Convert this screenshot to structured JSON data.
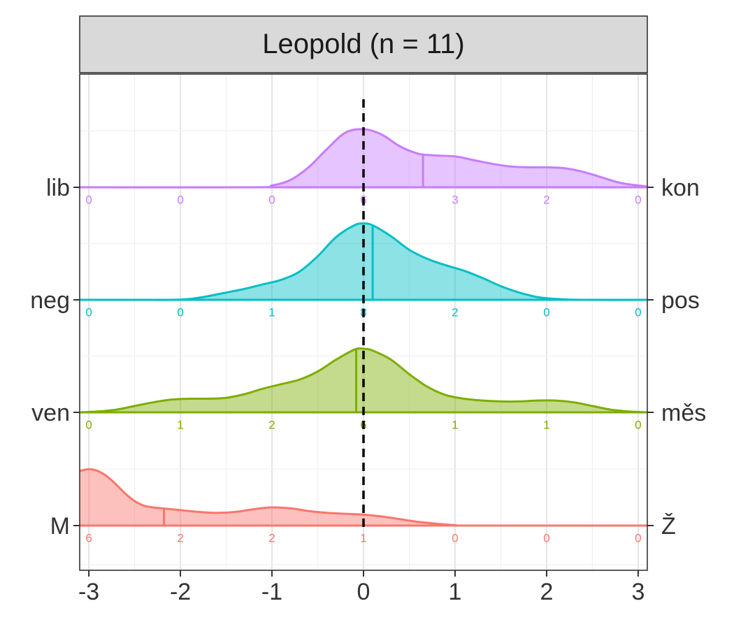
{
  "chart_data": {
    "type": "ridgeline",
    "facet_title": "Leopold (n = 11)",
    "x_ticks": [
      -3,
      -2,
      -1,
      0,
      1,
      2,
      3
    ],
    "xlim": [
      -3.1,
      3.1
    ],
    "reference_line_x": 0,
    "grid": true,
    "count_positions": [
      -3,
      -2,
      -1,
      0,
      1,
      2,
      3
    ],
    "rows": [
      {
        "left_label": "M",
        "right_label": "Ž",
        "color": "#F8766D",
        "mean": -2.18,
        "counts": [
          "6",
          "2",
          "2",
          "1",
          "0",
          "0",
          "0"
        ],
        "density": [
          [
            -3.1,
            0.6
          ],
          [
            -3.0,
            0.62
          ],
          [
            -2.9,
            0.6
          ],
          [
            -2.8,
            0.54
          ],
          [
            -2.7,
            0.45
          ],
          [
            -2.6,
            0.35
          ],
          [
            -2.5,
            0.27
          ],
          [
            -2.4,
            0.22
          ],
          [
            -2.3,
            0.2
          ],
          [
            -2.2,
            0.19
          ],
          [
            -2.1,
            0.18
          ],
          [
            -2.0,
            0.17
          ],
          [
            -1.8,
            0.15
          ],
          [
            -1.6,
            0.14
          ],
          [
            -1.4,
            0.15
          ],
          [
            -1.2,
            0.18
          ],
          [
            -1.0,
            0.2
          ],
          [
            -0.8,
            0.19
          ],
          [
            -0.6,
            0.16
          ],
          [
            -0.4,
            0.14
          ],
          [
            -0.2,
            0.13
          ],
          [
            0.0,
            0.12
          ],
          [
            0.2,
            0.1
          ],
          [
            0.4,
            0.07
          ],
          [
            0.6,
            0.04
          ],
          [
            0.8,
            0.02
          ],
          [
            1.0,
            0.005
          ],
          [
            1.2,
            0.0
          ],
          [
            3.1,
            0.0
          ]
        ]
      },
      {
        "left_label": "ven",
        "right_label": "měs",
        "color": "#7CAE00",
        "mean": -0.08,
        "counts": [
          "0",
          "1",
          "2",
          "6",
          "1",
          "1",
          "0"
        ],
        "density": [
          [
            -3.1,
            0.0
          ],
          [
            -2.9,
            0.01
          ],
          [
            -2.7,
            0.03
          ],
          [
            -2.5,
            0.07
          ],
          [
            -2.3,
            0.11
          ],
          [
            -2.1,
            0.14
          ],
          [
            -1.9,
            0.15
          ],
          [
            -1.7,
            0.15
          ],
          [
            -1.5,
            0.16
          ],
          [
            -1.3,
            0.2
          ],
          [
            -1.1,
            0.26
          ],
          [
            -0.9,
            0.31
          ],
          [
            -0.7,
            0.36
          ],
          [
            -0.5,
            0.45
          ],
          [
            -0.3,
            0.58
          ],
          [
            -0.1,
            0.69
          ],
          [
            0.0,
            0.7
          ],
          [
            0.1,
            0.68
          ],
          [
            0.3,
            0.58
          ],
          [
            0.5,
            0.42
          ],
          [
            0.7,
            0.28
          ],
          [
            0.9,
            0.19
          ],
          [
            1.1,
            0.15
          ],
          [
            1.3,
            0.13
          ],
          [
            1.5,
            0.12
          ],
          [
            1.7,
            0.12
          ],
          [
            1.9,
            0.13
          ],
          [
            2.1,
            0.13
          ],
          [
            2.3,
            0.11
          ],
          [
            2.5,
            0.07
          ],
          [
            2.7,
            0.03
          ],
          [
            2.9,
            0.01
          ],
          [
            3.1,
            0.0
          ]
        ]
      },
      {
        "left_label": "neg",
        "right_label": "pos",
        "color": "#00BFC4",
        "mean": 0.1,
        "counts": [
          "0",
          "0",
          "1",
          "8",
          "2",
          "0",
          "0"
        ],
        "density": [
          [
            -3.1,
            0.0
          ],
          [
            -2.5,
            0.0
          ],
          [
            -2.1,
            0.0
          ],
          [
            -1.9,
            0.01
          ],
          [
            -1.7,
            0.04
          ],
          [
            -1.5,
            0.08
          ],
          [
            -1.3,
            0.12
          ],
          [
            -1.1,
            0.17
          ],
          [
            -0.9,
            0.22
          ],
          [
            -0.7,
            0.31
          ],
          [
            -0.5,
            0.48
          ],
          [
            -0.3,
            0.69
          ],
          [
            -0.1,
            0.82
          ],
          [
            0.0,
            0.84
          ],
          [
            0.1,
            0.82
          ],
          [
            0.3,
            0.7
          ],
          [
            0.5,
            0.55
          ],
          [
            0.7,
            0.45
          ],
          [
            0.9,
            0.38
          ],
          [
            1.1,
            0.32
          ],
          [
            1.3,
            0.24
          ],
          [
            1.5,
            0.15
          ],
          [
            1.7,
            0.08
          ],
          [
            1.9,
            0.03
          ],
          [
            2.1,
            0.01
          ],
          [
            2.4,
            0.0
          ],
          [
            3.1,
            0.0
          ]
        ]
      },
      {
        "left_label": "lib",
        "right_label": "kon",
        "color": "#C77CFF",
        "mean": 0.65,
        "counts": [
          "0",
          "0",
          "0",
          "6",
          "3",
          "2",
          "0"
        ],
        "density": [
          [
            -3.1,
            0.0
          ],
          [
            -1.2,
            0.0
          ],
          [
            -1.0,
            0.02
          ],
          [
            -0.8,
            0.08
          ],
          [
            -0.6,
            0.22
          ],
          [
            -0.4,
            0.42
          ],
          [
            -0.2,
            0.6
          ],
          [
            0.0,
            0.64
          ],
          [
            0.2,
            0.58
          ],
          [
            0.4,
            0.45
          ],
          [
            0.6,
            0.37
          ],
          [
            0.8,
            0.35
          ],
          [
            1.0,
            0.34
          ],
          [
            1.2,
            0.3
          ],
          [
            1.4,
            0.26
          ],
          [
            1.6,
            0.23
          ],
          [
            1.8,
            0.22
          ],
          [
            2.0,
            0.22
          ],
          [
            2.2,
            0.21
          ],
          [
            2.4,
            0.17
          ],
          [
            2.6,
            0.11
          ],
          [
            2.8,
            0.05
          ],
          [
            3.0,
            0.02
          ],
          [
            3.1,
            0.01
          ]
        ]
      }
    ]
  }
}
